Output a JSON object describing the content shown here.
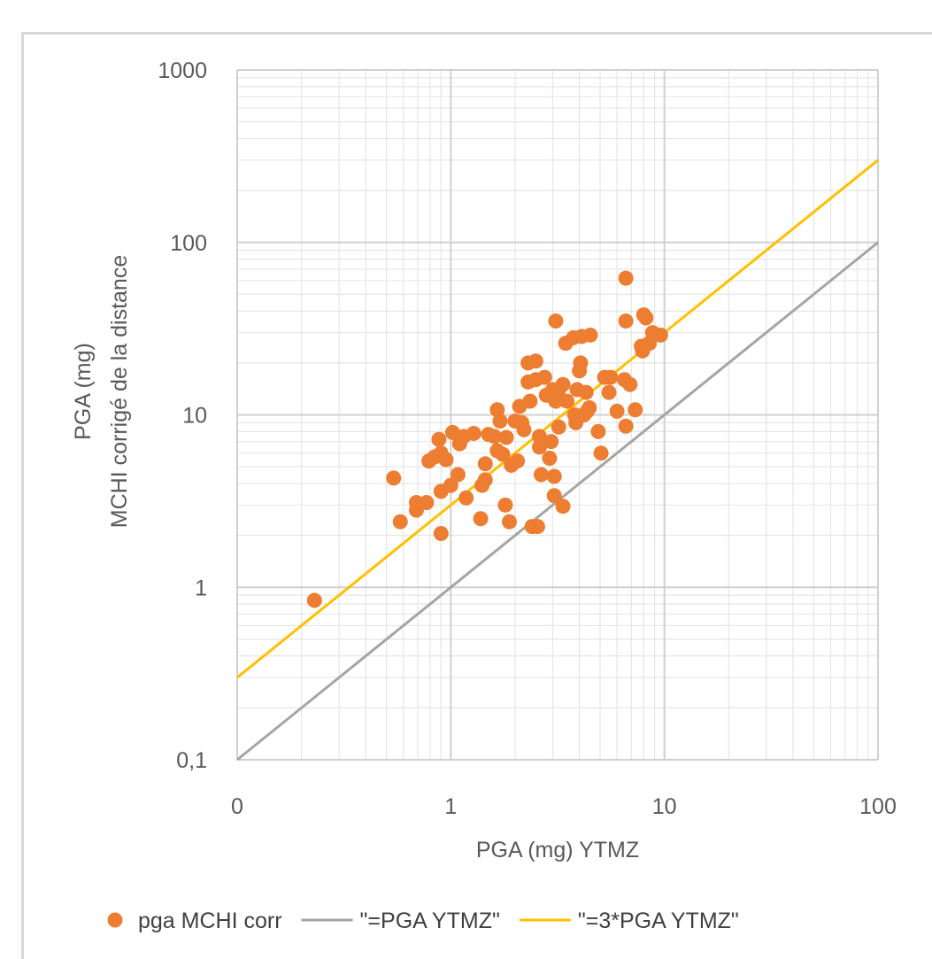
{
  "chart_data": {
    "type": "scatter",
    "title": "",
    "xlabel": "PGA (mg) YTMZ",
    "ylabel_lines": [
      "PGA (mg)",
      "MCHI corrigé de la distance"
    ],
    "x_scale": "log",
    "y_scale": "log",
    "xlim": [
      0.1,
      100
    ],
    "ylim": [
      0.1,
      1000
    ],
    "x_tick_labels": [
      "0",
      "1",
      "10",
      "100"
    ],
    "y_tick_labels": [
      "0,1",
      "1",
      "10",
      "100",
      "1000"
    ],
    "grid": true,
    "legend_position": "bottom",
    "series": [
      {
        "name": "pga MCHI corr",
        "kind": "scatter",
        "color": "#ED7D31",
        "points": [
          [
            0.23,
            0.84
          ],
          [
            0.54,
            4.3
          ],
          [
            0.58,
            2.4
          ],
          [
            0.69,
            3.1
          ],
          [
            0.69,
            2.8
          ],
          [
            0.77,
            3.1
          ],
          [
            0.79,
            5.4
          ],
          [
            0.84,
            5.7
          ],
          [
            0.88,
            7.2
          ],
          [
            0.9,
            6.0
          ],
          [
            0.9,
            3.6
          ],
          [
            0.9,
            2.05
          ],
          [
            0.95,
            5.5
          ],
          [
            1.0,
            3.9
          ],
          [
            1.02,
            7.9
          ],
          [
            1.08,
            4.5
          ],
          [
            1.1,
            6.8
          ],
          [
            1.15,
            7.5
          ],
          [
            1.18,
            3.3
          ],
          [
            1.28,
            7.8
          ],
          [
            1.38,
            2.5
          ],
          [
            1.4,
            3.9
          ],
          [
            1.45,
            4.2
          ],
          [
            1.45,
            5.2
          ],
          [
            1.5,
            7.7
          ],
          [
            1.6,
            7.5
          ],
          [
            1.65,
            10.7
          ],
          [
            1.65,
            6.2
          ],
          [
            1.7,
            9.2
          ],
          [
            1.75,
            5.9
          ],
          [
            1.8,
            3.0
          ],
          [
            1.82,
            7.4
          ],
          [
            1.88,
            2.4
          ],
          [
            1.92,
            5.1
          ],
          [
            2.0,
            9.2
          ],
          [
            2.05,
            5.4
          ],
          [
            2.1,
            11.2
          ],
          [
            2.15,
            9.0
          ],
          [
            2.2,
            8.2
          ],
          [
            2.3,
            20.0
          ],
          [
            2.3,
            15.5
          ],
          [
            2.35,
            12.0
          ],
          [
            2.4,
            2.25
          ],
          [
            2.5,
            20.5
          ],
          [
            2.5,
            16.0
          ],
          [
            2.55,
            2.25
          ],
          [
            2.6,
            7.5
          ],
          [
            2.6,
            6.5
          ],
          [
            2.65,
            4.5
          ],
          [
            2.75,
            16.5
          ],
          [
            2.8,
            13.0
          ],
          [
            2.9,
            5.6
          ],
          [
            2.95,
            7.0
          ],
          [
            3.0,
            14.0
          ],
          [
            3.05,
            4.4
          ],
          [
            3.05,
            3.4
          ],
          [
            3.1,
            35.0
          ],
          [
            3.1,
            12.0
          ],
          [
            3.2,
            14.0
          ],
          [
            3.2,
            8.5
          ],
          [
            3.35,
            15.0
          ],
          [
            3.35,
            2.95
          ],
          [
            3.45,
            26.0
          ],
          [
            3.5,
            12.0
          ],
          [
            3.75,
            28.0
          ],
          [
            3.8,
            10.0
          ],
          [
            3.85,
            9.0
          ],
          [
            3.9,
            14.0
          ],
          [
            4.0,
            18.0
          ],
          [
            4.05,
            20.0
          ],
          [
            4.1,
            28.5
          ],
          [
            4.2,
            10.0
          ],
          [
            4.3,
            13.5
          ],
          [
            4.35,
            10.5
          ],
          [
            4.45,
            11.0
          ],
          [
            4.5,
            29.0
          ],
          [
            4.9,
            8.0
          ],
          [
            5.05,
            6.0
          ],
          [
            5.25,
            16.5
          ],
          [
            5.5,
            13.5
          ],
          [
            5.6,
            16.5
          ],
          [
            6.0,
            10.5
          ],
          [
            6.5,
            16.0
          ],
          [
            6.6,
            62.0
          ],
          [
            6.6,
            35.0
          ],
          [
            6.6,
            8.6
          ],
          [
            6.9,
            15.0
          ],
          [
            7.3,
            10.7
          ],
          [
            7.8,
            25.0
          ],
          [
            7.9,
            23.5
          ],
          [
            8.0,
            38.0
          ],
          [
            8.2,
            36.5
          ],
          [
            8.5,
            26.0
          ],
          [
            8.8,
            30.0
          ],
          [
            9.6,
            29.0
          ]
        ]
      },
      {
        "name": "\"=PGA YTMZ\"",
        "kind": "line",
        "color": "#A5A5A5",
        "x": [
          0.1,
          100
        ],
        "y": [
          0.1,
          100
        ]
      },
      {
        "name": "\"=3*PGA YTMZ\"",
        "kind": "line",
        "color": "#FFC000",
        "x": [
          0.1,
          100
        ],
        "y": [
          0.3,
          300
        ]
      }
    ]
  }
}
